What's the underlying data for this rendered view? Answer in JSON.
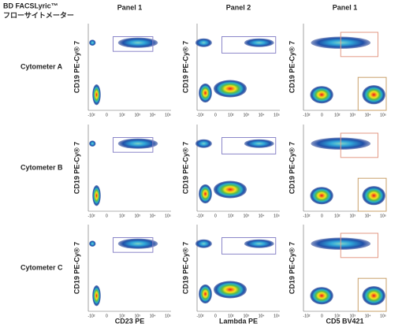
{
  "header": {
    "title": "BD FACSLyric™",
    "subtitle": "フローサイトメーター"
  },
  "columns": [
    "Panel 1",
    "Panel 2",
    "Panel 1"
  ],
  "rows": [
    "Cytometer A",
    "Cytometer B",
    "Cytometer C"
  ],
  "y_axis_label": "CD19 PE-Cy® 7",
  "x_axis_labels": [
    "CD23 PE",
    "Lambda PE",
    "CD5 BV421"
  ],
  "x_ticks": [
    "-10²",
    "0",
    "10²",
    "10³",
    "10⁴",
    "10⁵"
  ]
}
